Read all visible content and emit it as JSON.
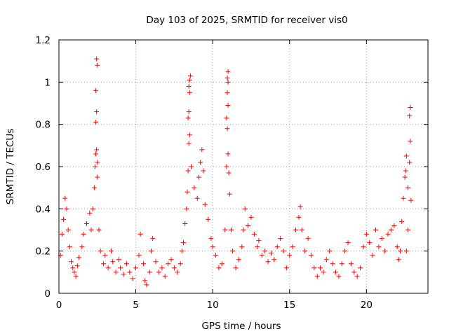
{
  "chart_data": {
    "type": "scatter",
    "title": "Day 103 of 2025, SRMTID for receiver vis0",
    "xlabel": "GPS time / hours",
    "ylabel": "SRMTID / TECUs",
    "xlim": [
      0,
      24
    ],
    "ylim": [
      0,
      1.2
    ],
    "x_ticks": [
      0,
      5,
      10,
      15,
      20
    ],
    "y_ticks": [
      0,
      0.2,
      0.4,
      0.6,
      0.8,
      1,
      1.2
    ],
    "x_tick_labels": [
      "0",
      "5",
      "10",
      "15",
      "20"
    ],
    "y_tick_labels": [
      "0",
      "0.2",
      "0.4",
      "0.6",
      "0.8",
      "1",
      "1.2"
    ],
    "grid": true,
    "marker": "+",
    "color": "#ff0000",
    "series": [
      {
        "name": "SRMTID",
        "points": [
          [
            0.1,
            0.18
          ],
          [
            0.2,
            0.28
          ],
          [
            0.3,
            0.35
          ],
          [
            0.4,
            0.45
          ],
          [
            0.5,
            0.4
          ],
          [
            0.6,
            0.3
          ],
          [
            0.7,
            0.22
          ],
          [
            0.8,
            0.15
          ],
          [
            0.9,
            0.12
          ],
          [
            1.0,
            0.1
          ],
          [
            1.1,
            0.08
          ],
          [
            1.2,
            0.13
          ],
          [
            1.3,
            0.17
          ],
          [
            1.5,
            0.22
          ],
          [
            1.6,
            0.28
          ],
          [
            1.8,
            0.33
          ],
          [
            2.0,
            0.38
          ],
          [
            2.1,
            0.3
          ],
          [
            2.2,
            0.4
          ],
          [
            2.3,
            0.5
          ],
          [
            2.35,
            0.6
          ],
          [
            2.4,
            0.66
          ],
          [
            2.45,
            0.68
          ],
          [
            2.5,
            0.62
          ],
          [
            2.4,
            0.81
          ],
          [
            2.45,
            0.86
          ],
          [
            2.4,
            0.96
          ],
          [
            2.5,
            1.08
          ],
          [
            2.45,
            1.11
          ],
          [
            2.5,
            0.55
          ],
          [
            2.6,
            0.3
          ],
          [
            2.7,
            0.2
          ],
          [
            2.9,
            0.14
          ],
          [
            3.0,
            0.18
          ],
          [
            3.2,
            0.12
          ],
          [
            3.4,
            0.2
          ],
          [
            3.5,
            0.15
          ],
          [
            3.7,
            0.1
          ],
          [
            3.9,
            0.16
          ],
          [
            4.0,
            0.12
          ],
          [
            4.2,
            0.09
          ],
          [
            4.4,
            0.14
          ],
          [
            4.6,
            0.1
          ],
          [
            4.8,
            0.07
          ],
          [
            5.0,
            0.12
          ],
          [
            5.2,
            0.18
          ],
          [
            5.3,
            0.28
          ],
          [
            5.5,
            0.14
          ],
          [
            5.6,
            0.06
          ],
          [
            5.7,
            0.04
          ],
          [
            5.9,
            0.1
          ],
          [
            6.0,
            0.2
          ],
          [
            6.1,
            0.26
          ],
          [
            6.3,
            0.15
          ],
          [
            6.5,
            0.1
          ],
          [
            6.7,
            0.12
          ],
          [
            6.9,
            0.08
          ],
          [
            7.1,
            0.14
          ],
          [
            7.3,
            0.16
          ],
          [
            7.5,
            0.12
          ],
          [
            7.7,
            0.1
          ],
          [
            7.9,
            0.14
          ],
          [
            8.0,
            0.2
          ],
          [
            8.1,
            0.24
          ],
          [
            8.2,
            0.33
          ],
          [
            8.3,
            0.4
          ],
          [
            8.35,
            0.48
          ],
          [
            8.4,
            0.58
          ],
          [
            8.45,
            0.71
          ],
          [
            8.5,
            0.75
          ],
          [
            8.4,
            0.83
          ],
          [
            8.45,
            0.86
          ],
          [
            8.5,
            0.95
          ],
          [
            8.45,
            0.98
          ],
          [
            8.5,
            1.01
          ],
          [
            8.55,
            1.03
          ],
          [
            8.6,
            0.6
          ],
          [
            8.8,
            0.5
          ],
          [
            9.0,
            0.45
          ],
          [
            9.1,
            0.55
          ],
          [
            9.2,
            0.62
          ],
          [
            9.3,
            0.68
          ],
          [
            9.4,
            0.58
          ],
          [
            9.5,
            0.42
          ],
          [
            9.7,
            0.35
          ],
          [
            9.9,
            0.26
          ],
          [
            10.0,
            0.22
          ],
          [
            10.2,
            0.18
          ],
          [
            10.4,
            0.12
          ],
          [
            10.6,
            0.14
          ],
          [
            10.8,
            0.3
          ],
          [
            10.9,
            0.6
          ],
          [
            10.95,
            0.78
          ],
          [
            10.9,
            0.83
          ],
          [
            11.0,
            0.89
          ],
          [
            10.95,
            0.95
          ],
          [
            11.0,
            1.0
          ],
          [
            10.95,
            1.02
          ],
          [
            11.0,
            1.05
          ],
          [
            11.0,
            0.66
          ],
          [
            11.05,
            0.57
          ],
          [
            11.1,
            0.47
          ],
          [
            11.2,
            0.3
          ],
          [
            11.3,
            0.2
          ],
          [
            11.5,
            0.12
          ],
          [
            11.7,
            0.16
          ],
          [
            11.9,
            0.22
          ],
          [
            12.0,
            0.3
          ],
          [
            12.1,
            0.4
          ],
          [
            12.3,
            0.32
          ],
          [
            12.5,
            0.36
          ],
          [
            12.7,
            0.28
          ],
          [
            12.9,
            0.22
          ],
          [
            13.0,
            0.25
          ],
          [
            13.2,
            0.18
          ],
          [
            13.4,
            0.2
          ],
          [
            13.6,
            0.15
          ],
          [
            13.8,
            0.19
          ],
          [
            14.0,
            0.16
          ],
          [
            14.2,
            0.22
          ],
          [
            14.4,
            0.26
          ],
          [
            14.6,
            0.2
          ],
          [
            14.8,
            0.12
          ],
          [
            15.0,
            0.18
          ],
          [
            15.2,
            0.22
          ],
          [
            15.4,
            0.3
          ],
          [
            15.6,
            0.36
          ],
          [
            15.7,
            0.41
          ],
          [
            15.8,
            0.3
          ],
          [
            16.0,
            0.2
          ],
          [
            16.2,
            0.26
          ],
          [
            16.4,
            0.18
          ],
          [
            16.6,
            0.12
          ],
          [
            16.8,
            0.08
          ],
          [
            17.0,
            0.12
          ],
          [
            17.2,
            0.1
          ],
          [
            17.4,
            0.16
          ],
          [
            17.6,
            0.2
          ],
          [
            17.8,
            0.14
          ],
          [
            18.0,
            0.1
          ],
          [
            18.2,
            0.08
          ],
          [
            18.4,
            0.14
          ],
          [
            18.6,
            0.2
          ],
          [
            18.8,
            0.24
          ],
          [
            19.0,
            0.14
          ],
          [
            19.2,
            0.1
          ],
          [
            19.4,
            0.08
          ],
          [
            19.6,
            0.12
          ],
          [
            19.8,
            0.22
          ],
          [
            20.0,
            0.28
          ],
          [
            20.2,
            0.24
          ],
          [
            20.4,
            0.18
          ],
          [
            20.6,
            0.3
          ],
          [
            20.8,
            0.22
          ],
          [
            21.0,
            0.26
          ],
          [
            21.2,
            0.2
          ],
          [
            21.4,
            0.28
          ],
          [
            21.6,
            0.3
          ],
          [
            21.8,
            0.32
          ],
          [
            22.0,
            0.22
          ],
          [
            22.1,
            0.16
          ],
          [
            22.2,
            0.2
          ],
          [
            22.3,
            0.34
          ],
          [
            22.4,
            0.45
          ],
          [
            22.5,
            0.55
          ],
          [
            22.55,
            0.58
          ],
          [
            22.6,
            0.65
          ],
          [
            22.7,
            0.5
          ],
          [
            22.8,
            0.62
          ],
          [
            22.85,
            0.72
          ],
          [
            22.8,
            0.84
          ],
          [
            22.85,
            0.88
          ],
          [
            22.9,
            0.44
          ],
          [
            22.7,
            0.3
          ],
          [
            22.6,
            0.2
          ]
        ]
      }
    ]
  }
}
